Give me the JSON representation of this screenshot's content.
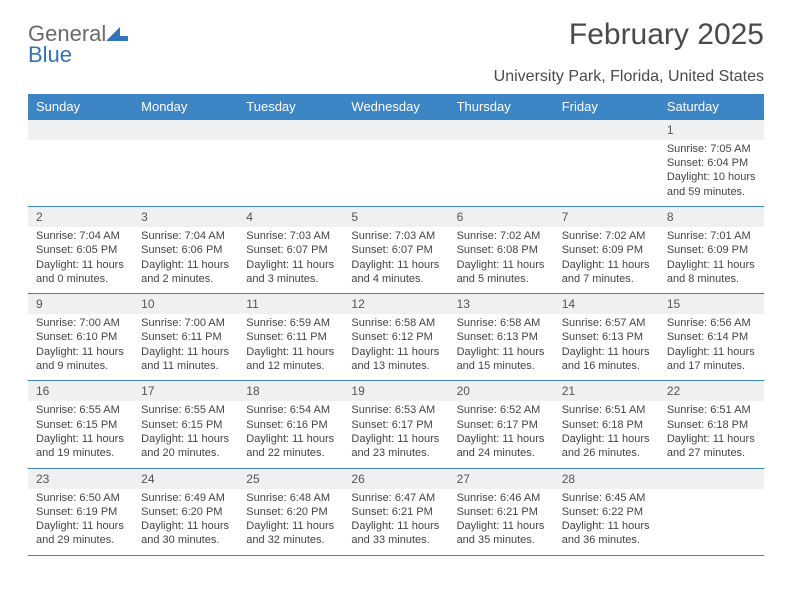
{
  "brand": {
    "name_gray": "General",
    "name_blue": "Blue"
  },
  "colors": {
    "header_bg": "#3d86c6",
    "header_text": "#ffffff",
    "date_row_bg": "#eef0f1",
    "row_border": "#3d86c6",
    "body_text": "#444444",
    "title_text": "#4a4a4a"
  },
  "title": "February 2025",
  "subtitle": "University Park, Florida, United States",
  "day_names": [
    "Sunday",
    "Monday",
    "Tuesday",
    "Wednesday",
    "Thursday",
    "Friday",
    "Saturday"
  ],
  "weeks": [
    {
      "dates": [
        "",
        "",
        "",
        "",
        "",
        "",
        "1"
      ],
      "cells": [
        null,
        null,
        null,
        null,
        null,
        null,
        {
          "sunrise": "Sunrise: 7:05 AM",
          "sunset": "Sunset: 6:04 PM",
          "day1": "Daylight: 10 hours",
          "day2": "and 59 minutes."
        }
      ]
    },
    {
      "dates": [
        "2",
        "3",
        "4",
        "5",
        "6",
        "7",
        "8"
      ],
      "cells": [
        {
          "sunrise": "Sunrise: 7:04 AM",
          "sunset": "Sunset: 6:05 PM",
          "day1": "Daylight: 11 hours",
          "day2": "and 0 minutes."
        },
        {
          "sunrise": "Sunrise: 7:04 AM",
          "sunset": "Sunset: 6:06 PM",
          "day1": "Daylight: 11 hours",
          "day2": "and 2 minutes."
        },
        {
          "sunrise": "Sunrise: 7:03 AM",
          "sunset": "Sunset: 6:07 PM",
          "day1": "Daylight: 11 hours",
          "day2": "and 3 minutes."
        },
        {
          "sunrise": "Sunrise: 7:03 AM",
          "sunset": "Sunset: 6:07 PM",
          "day1": "Daylight: 11 hours",
          "day2": "and 4 minutes."
        },
        {
          "sunrise": "Sunrise: 7:02 AM",
          "sunset": "Sunset: 6:08 PM",
          "day1": "Daylight: 11 hours",
          "day2": "and 5 minutes."
        },
        {
          "sunrise": "Sunrise: 7:02 AM",
          "sunset": "Sunset: 6:09 PM",
          "day1": "Daylight: 11 hours",
          "day2": "and 7 minutes."
        },
        {
          "sunrise": "Sunrise: 7:01 AM",
          "sunset": "Sunset: 6:09 PM",
          "day1": "Daylight: 11 hours",
          "day2": "and 8 minutes."
        }
      ]
    },
    {
      "dates": [
        "9",
        "10",
        "11",
        "12",
        "13",
        "14",
        "15"
      ],
      "cells": [
        {
          "sunrise": "Sunrise: 7:00 AM",
          "sunset": "Sunset: 6:10 PM",
          "day1": "Daylight: 11 hours",
          "day2": "and 9 minutes."
        },
        {
          "sunrise": "Sunrise: 7:00 AM",
          "sunset": "Sunset: 6:11 PM",
          "day1": "Daylight: 11 hours",
          "day2": "and 11 minutes."
        },
        {
          "sunrise": "Sunrise: 6:59 AM",
          "sunset": "Sunset: 6:11 PM",
          "day1": "Daylight: 11 hours",
          "day2": "and 12 minutes."
        },
        {
          "sunrise": "Sunrise: 6:58 AM",
          "sunset": "Sunset: 6:12 PM",
          "day1": "Daylight: 11 hours",
          "day2": "and 13 minutes."
        },
        {
          "sunrise": "Sunrise: 6:58 AM",
          "sunset": "Sunset: 6:13 PM",
          "day1": "Daylight: 11 hours",
          "day2": "and 15 minutes."
        },
        {
          "sunrise": "Sunrise: 6:57 AM",
          "sunset": "Sunset: 6:13 PM",
          "day1": "Daylight: 11 hours",
          "day2": "and 16 minutes."
        },
        {
          "sunrise": "Sunrise: 6:56 AM",
          "sunset": "Sunset: 6:14 PM",
          "day1": "Daylight: 11 hours",
          "day2": "and 17 minutes."
        }
      ]
    },
    {
      "dates": [
        "16",
        "17",
        "18",
        "19",
        "20",
        "21",
        "22"
      ],
      "cells": [
        {
          "sunrise": "Sunrise: 6:55 AM",
          "sunset": "Sunset: 6:15 PM",
          "day1": "Daylight: 11 hours",
          "day2": "and 19 minutes."
        },
        {
          "sunrise": "Sunrise: 6:55 AM",
          "sunset": "Sunset: 6:15 PM",
          "day1": "Daylight: 11 hours",
          "day2": "and 20 minutes."
        },
        {
          "sunrise": "Sunrise: 6:54 AM",
          "sunset": "Sunset: 6:16 PM",
          "day1": "Daylight: 11 hours",
          "day2": "and 22 minutes."
        },
        {
          "sunrise": "Sunrise: 6:53 AM",
          "sunset": "Sunset: 6:17 PM",
          "day1": "Daylight: 11 hours",
          "day2": "and 23 minutes."
        },
        {
          "sunrise": "Sunrise: 6:52 AM",
          "sunset": "Sunset: 6:17 PM",
          "day1": "Daylight: 11 hours",
          "day2": "and 24 minutes."
        },
        {
          "sunrise": "Sunrise: 6:51 AM",
          "sunset": "Sunset: 6:18 PM",
          "day1": "Daylight: 11 hours",
          "day2": "and 26 minutes."
        },
        {
          "sunrise": "Sunrise: 6:51 AM",
          "sunset": "Sunset: 6:18 PM",
          "day1": "Daylight: 11 hours",
          "day2": "and 27 minutes."
        }
      ]
    },
    {
      "dates": [
        "23",
        "24",
        "25",
        "26",
        "27",
        "28",
        ""
      ],
      "cells": [
        {
          "sunrise": "Sunrise: 6:50 AM",
          "sunset": "Sunset: 6:19 PM",
          "day1": "Daylight: 11 hours",
          "day2": "and 29 minutes."
        },
        {
          "sunrise": "Sunrise: 6:49 AM",
          "sunset": "Sunset: 6:20 PM",
          "day1": "Daylight: 11 hours",
          "day2": "and 30 minutes."
        },
        {
          "sunrise": "Sunrise: 6:48 AM",
          "sunset": "Sunset: 6:20 PM",
          "day1": "Daylight: 11 hours",
          "day2": "and 32 minutes."
        },
        {
          "sunrise": "Sunrise: 6:47 AM",
          "sunset": "Sunset: 6:21 PM",
          "day1": "Daylight: 11 hours",
          "day2": "and 33 minutes."
        },
        {
          "sunrise": "Sunrise: 6:46 AM",
          "sunset": "Sunset: 6:21 PM",
          "day1": "Daylight: 11 hours",
          "day2": "and 35 minutes."
        },
        {
          "sunrise": "Sunrise: 6:45 AM",
          "sunset": "Sunset: 6:22 PM",
          "day1": "Daylight: 11 hours",
          "day2": "and 36 minutes."
        },
        null
      ]
    }
  ]
}
